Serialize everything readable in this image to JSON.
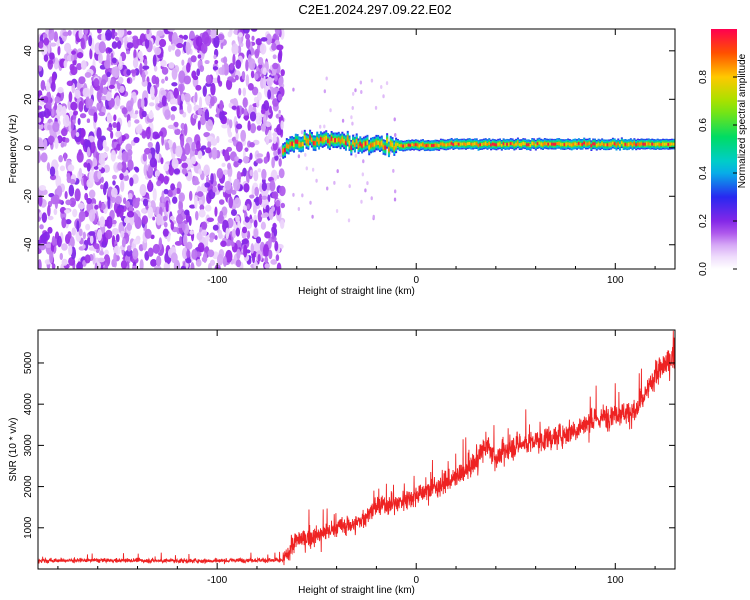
{
  "title": "C2E1.2024.297.09.22.E02",
  "chart_data": [
    {
      "type": "heatmap",
      "xlabel": "Height of straight line (km)",
      "ylabel": "Frequency (Hz)",
      "xlim": [
        -190,
        130
      ],
      "ylim": [
        -50,
        49
      ],
      "x_ticks": [
        -100,
        0,
        100
      ],
      "y_ticks": [
        -40,
        -20,
        0,
        20,
        40
      ],
      "colorbar": {
        "label": "Normalized spectral amplitude",
        "range": [
          0.0,
          1.0
        ],
        "ticks": [
          0.0,
          0.2,
          0.4,
          0.6,
          0.8
        ],
        "tick_labels": [
          "0.0",
          "0.2",
          "0.4",
          "0.6",
          "0.8"
        ]
      },
      "features": {
        "noise_region_x": [
          -190,
          -67
        ],
        "noise_amplitude": 0.2,
        "signal_start_x": -67,
        "signal_center_freq_hz": [
          [
            -67,
            0
          ],
          [
            -60,
            2
          ],
          [
            -50,
            3
          ],
          [
            -40,
            3
          ],
          [
            -30,
            2
          ],
          [
            -20,
            1
          ],
          [
            0,
            1
          ],
          [
            20,
            1.5
          ],
          [
            50,
            1.5
          ],
          [
            80,
            1.5
          ],
          [
            100,
            1.5
          ],
          [
            130,
            1.5
          ]
        ]
      }
    },
    {
      "type": "line",
      "xlabel": "Height of straight line (km)",
      "ylabel": "SNR (10 * v/v)",
      "xlim": [
        -190,
        130
      ],
      "ylim": [
        0,
        5800
      ],
      "x_ticks": [
        -100,
        0,
        100
      ],
      "y_ticks": [
        1000,
        2000,
        3000,
        4000,
        5000
      ],
      "series": [
        {
          "color": "#ee2222",
          "x": [
            -190,
            -160,
            -130,
            -100,
            -80,
            -67,
            -60,
            -50,
            -40,
            -30,
            -20,
            -10,
            0,
            10,
            20,
            30,
            35,
            40,
            50,
            60,
            70,
            80,
            90,
            100,
            110,
            115,
            120,
            130
          ],
          "values": [
            200,
            210,
            200,
            200,
            220,
            200,
            700,
            800,
            1000,
            1100,
            1500,
            1600,
            1800,
            2000,
            2200,
            2600,
            3000,
            2700,
            3000,
            3100,
            3200,
            3400,
            3600,
            3800,
            3800,
            4200,
            4700,
            5200
          ]
        }
      ]
    }
  ]
}
